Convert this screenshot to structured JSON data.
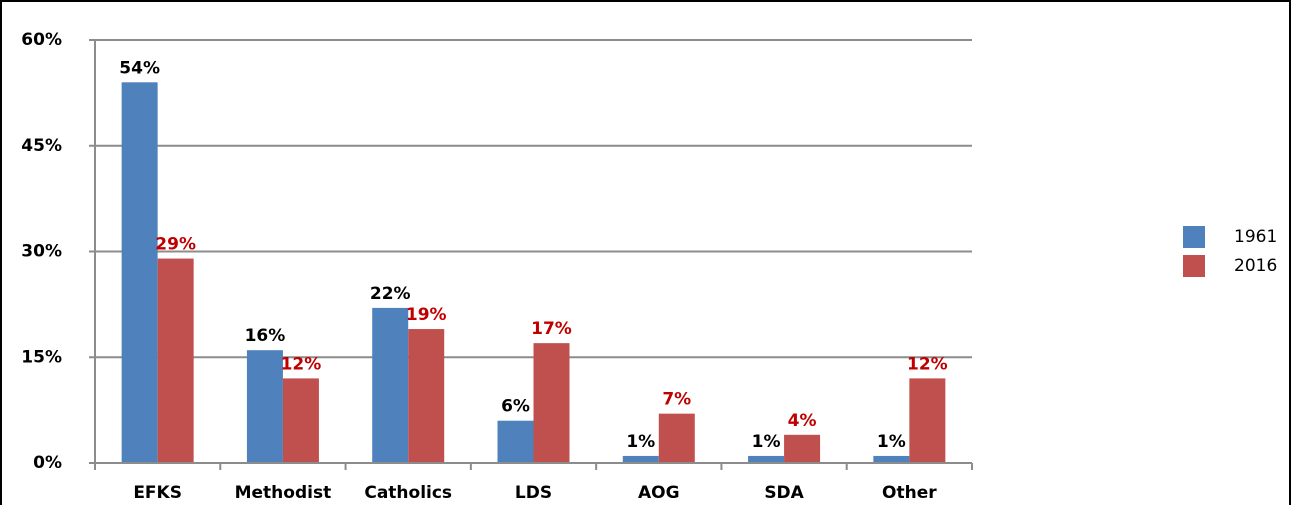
{
  "chart_data": {
    "type": "bar",
    "categories": [
      "EFKS",
      "Methodist",
      "Catholics",
      "LDS",
      "AOG",
      "SDA",
      "Other"
    ],
    "series": [
      {
        "name": "1961",
        "color": "#4f81bd",
        "label_color": "#000000",
        "values": [
          54,
          16,
          22,
          6,
          1,
          1,
          1
        ],
        "value_labels": [
          "54%",
          "16%",
          "22%",
          "6%",
          "1%",
          "1%",
          "1%"
        ]
      },
      {
        "name": "2016",
        "color": "#c0504d",
        "label_color": "#c00000",
        "values": [
          29,
          12,
          19,
          17,
          7,
          4,
          12
        ],
        "value_labels": [
          "29%",
          "12%",
          "19%",
          "17%",
          "7%",
          "4%",
          "12%"
        ]
      }
    ],
    "ylim": [
      0,
      60
    ],
    "yticks": [
      {
        "value": 0,
        "label": "0%"
      },
      {
        "value": 15,
        "label": "15%"
      },
      {
        "value": 30,
        "label": "30%"
      },
      {
        "value": 45,
        "label": "45%"
      },
      {
        "value": 60,
        "label": "60%"
      }
    ],
    "grid": true,
    "legend": "right"
  }
}
